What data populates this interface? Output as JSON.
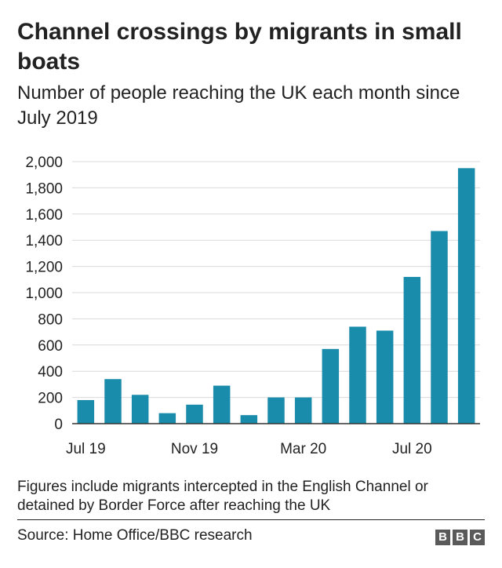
{
  "header": {
    "title": "Channel crossings by migrants in small boats",
    "subtitle": "Number of people reaching the UK each month since July 2019"
  },
  "footer": {
    "note": "Figures include migrants intercepted in the English Channel or detained by Border Force after reaching the UK",
    "source": "Source: Home Office/BBC research",
    "logo_letters": [
      "B",
      "B",
      "C"
    ]
  },
  "colors": {
    "bar": "#1a8cab",
    "grid": "#d9d9d9",
    "axis": "#333333",
    "text": "#222222"
  },
  "chart_data": {
    "type": "bar",
    "title": "Channel crossings by migrants in small boats",
    "subtitle": "Number of people reaching the UK each month since July 2019",
    "categories": [
      "Jul 19",
      "Aug 19",
      "Sep 19",
      "Oct 19",
      "Nov 19",
      "Dec 19",
      "Jan 20",
      "Feb 20",
      "Mar 20",
      "Apr 20",
      "May 20",
      "Jun 20",
      "Jul 20",
      "Aug 20",
      "Sep 20"
    ],
    "values": [
      180,
      340,
      220,
      80,
      145,
      290,
      65,
      200,
      200,
      570,
      740,
      710,
      1120,
      1470,
      1950
    ],
    "x_tick_labels": [
      "Jul 19",
      "Nov 19",
      "Mar 20",
      "Jul 20"
    ],
    "x_tick_categories": [
      "Jul 19",
      "Nov 19",
      "Mar 20",
      "Jul 20"
    ],
    "ylim": [
      0,
      2000
    ],
    "y_ticks": [
      0,
      200,
      400,
      600,
      800,
      1000,
      1200,
      1400,
      1600,
      1800,
      2000
    ],
    "y_tick_labels": [
      "0",
      "200",
      "400",
      "600",
      "800",
      "1,000",
      "1,200",
      "1,400",
      "1,600",
      "1,800",
      "2,000"
    ],
    "xlabel": "",
    "ylabel": "",
    "grid": true,
    "legend": "none"
  }
}
